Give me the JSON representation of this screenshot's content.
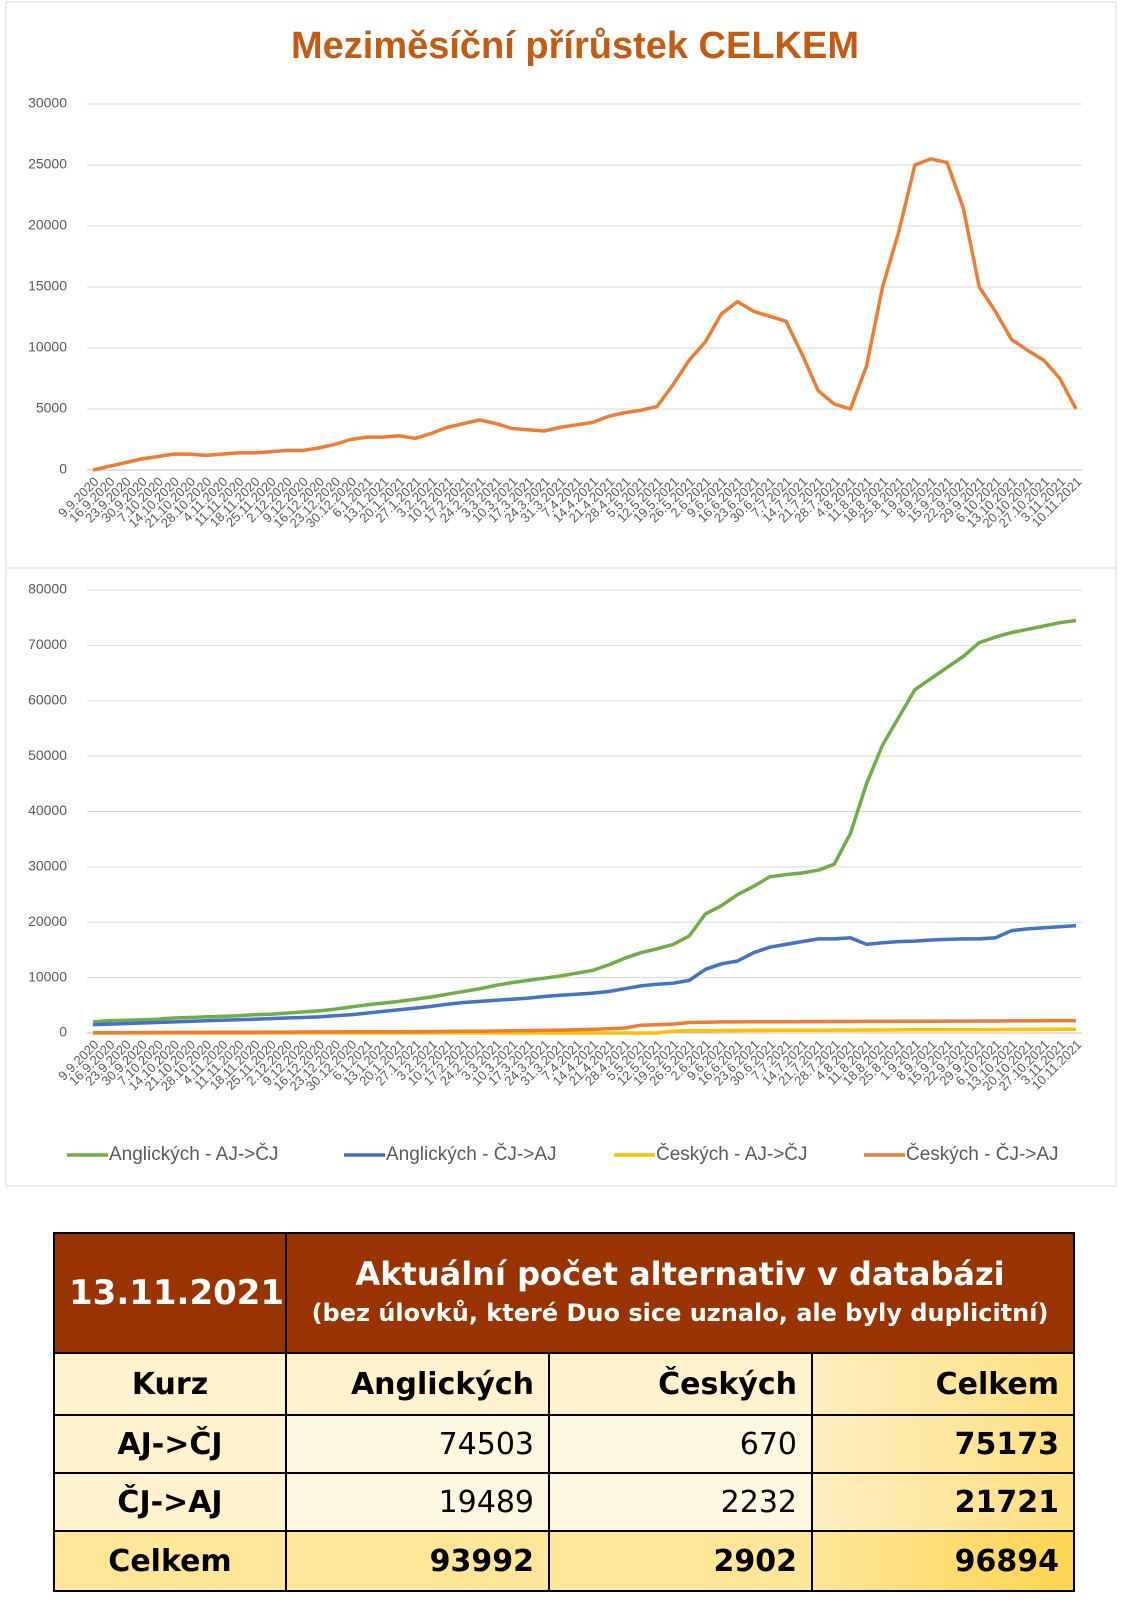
{
  "chart_data": [
    {
      "type": "line",
      "title": "Meziměsíční přírůstek CELKEM",
      "categories": [
        "9.9.2020",
        "16.9.2020",
        "23.9.2020",
        "30.9.2020",
        "7.10.2020",
        "14.10.2020",
        "21.10.2020",
        "28.10.2020",
        "4.11.2020",
        "11.11.2020",
        "18.11.2020",
        "25.11.2020",
        "2.12.2020",
        "9.12.2020",
        "16.12.2020",
        "23.12.2020",
        "30.12.2020",
        "6.1.2021",
        "13.1.2021",
        "20.1.2021",
        "27.1.2021",
        "3.2.2021",
        "10.2.2021",
        "17.2.2021",
        "24.2.2021",
        "3.3.2021",
        "10.3.2021",
        "17.3.2021",
        "24.3.2021",
        "31.3.2021",
        "7.4.2021",
        "14.4.2021",
        "21.4.2021",
        "28.4.2021",
        "5.5.2021",
        "12.5.2021",
        "19.5.2021",
        "26.5.2021",
        "2.6.2021",
        "9.6.2021",
        "16.6.2021",
        "23.6.2021",
        "30.6.2021",
        "7.7.2021",
        "14.7.2021",
        "21.7.2021",
        "28.7.2021",
        "4.8.2021",
        "11.8.2021",
        "18.8.2021",
        "25.8.2021",
        "1.9.2021",
        "8.9.2021",
        "15.9.2021",
        "22.9.2021",
        "29.9.2021",
        "6.10.2021",
        "13.10.2021",
        "20.10.2021",
        "27.10.2021",
        "3.11.2021",
        "10.11.2021"
      ],
      "values": [
        0,
        300,
        600,
        900,
        1100,
        1300,
        1300,
        1200,
        1300,
        1400,
        1400,
        1500,
        1600,
        1600,
        1800,
        2100,
        2500,
        2700,
        2700,
        2800,
        2600,
        3000,
        3500,
        3800,
        4100,
        3800,
        3400,
        3300,
        3200,
        3500,
        3700,
        3900,
        4400,
        4700,
        4900,
        5200,
        7000,
        9000,
        10500,
        12800,
        13800,
        13000,
        12600,
        12200,
        9500,
        6500,
        5400,
        5000,
        8500,
        15000,
        19500,
        25000,
        25500,
        25200,
        21500,
        15000,
        13000,
        10700,
        9800,
        9000,
        7500,
        5000
      ],
      "color": "#ED7D31",
      "ylim": [
        0,
        30000
      ],
      "yticks": [
        0,
        5000,
        10000,
        15000,
        20000,
        25000,
        30000
      ],
      "grid": true
    },
    {
      "type": "line",
      "categories": [
        "9.9.2020",
        "16.9.2020",
        "23.9.2020",
        "30.9.2020",
        "7.10.2020",
        "14.10.2020",
        "21.10.2020",
        "28.10.2020",
        "4.11.2020",
        "11.11.2020",
        "18.11.2020",
        "25.11.2020",
        "2.12.2020",
        "9.12.2020",
        "16.12.2020",
        "23.12.2020",
        "30.12.2020",
        "6.1.2021",
        "13.1.2021",
        "20.1.2021",
        "27.1.2021",
        "3.2.2021",
        "10.2.2021",
        "17.2.2021",
        "24.2.2021",
        "3.3.2021",
        "10.3.2021",
        "17.3.2021",
        "24.3.2021",
        "31.3.2021",
        "7.4.2021",
        "14.4.2021",
        "21.4.2021",
        "28.4.2021",
        "5.5.2021",
        "12.5.2021",
        "19.5.2021",
        "26.5.2021",
        "2.6.2021",
        "9.6.2021",
        "16.6.2021",
        "23.6.2021",
        "30.6.2021",
        "7.7.2021",
        "14.7.2021",
        "21.7.2021",
        "28.7.2021",
        "4.8.2021",
        "11.8.2021",
        "18.8.2021",
        "25.8.2021",
        "1.9.2021",
        "8.9.2021",
        "15.9.2021",
        "22.9.2021",
        "29.9.2021",
        "6.10.2021",
        "13.10.2021",
        "20.10.2021",
        "27.10.2021",
        "3.11.2021",
        "10.11.2021"
      ],
      "series": [
        {
          "name": "Anglických - AJ->ČJ",
          "color": "#70AD47",
          "values": [
            2000,
            2200,
            2300,
            2400,
            2500,
            2700,
            2800,
            2900,
            3000,
            3100,
            3300,
            3400,
            3600,
            3800,
            4000,
            4300,
            4700,
            5100,
            5400,
            5700,
            6100,
            6500,
            7000,
            7500,
            8000,
            8600,
            9100,
            9500,
            9900,
            10300,
            10800,
            11300,
            12300,
            13500,
            14500,
            15200,
            16000,
            17500,
            21500,
            23000,
            25000,
            26500,
            28200,
            28600,
            28900,
            29400,
            30500,
            36000,
            45000,
            52000,
            57000,
            62000,
            64000,
            66000,
            68000,
            70500,
            71500,
            72300,
            72900,
            73500,
            74100,
            74500
          ]
        },
        {
          "name": "Anglických - ČJ->AJ",
          "color": "#4472C4",
          "values": [
            1500,
            1600,
            1700,
            1800,
            1900,
            2000,
            2100,
            2200,
            2300,
            2400,
            2500,
            2600,
            2700,
            2800,
            2900,
            3100,
            3300,
            3600,
            3900,
            4200,
            4500,
            4800,
            5200,
            5500,
            5700,
            5900,
            6100,
            6300,
            6600,
            6800,
            7000,
            7200,
            7500,
            8000,
            8500,
            8800,
            9000,
            9500,
            11500,
            12500,
            13000,
            14500,
            15500,
            16000,
            16500,
            17000,
            17000,
            17200,
            16000,
            16300,
            16500,
            16600,
            16800,
            16900,
            17000,
            17000,
            17200,
            18500,
            18800,
            19000,
            19200,
            19400
          ]
        },
        {
          "name": "Českých - AJ->ČJ",
          "color": "#FFC000",
          "values": [
            0,
            0,
            0,
            0,
            0,
            0,
            0,
            0,
            0,
            0,
            0,
            0,
            0,
            0,
            0,
            0,
            0,
            0,
            0,
            0,
            0,
            0,
            0,
            0,
            0,
            0,
            0,
            0,
            0,
            0,
            0,
            0,
            0,
            0,
            0,
            0,
            350,
            400,
            420,
            440,
            460,
            470,
            480,
            490,
            500,
            510,
            520,
            530,
            540,
            550,
            560,
            570,
            580,
            590,
            600,
            610,
            620,
            630,
            640,
            650,
            660,
            670
          ]
        },
        {
          "name": "Českých - ČJ->AJ",
          "color": "#ED7D31",
          "values": [
            50,
            60,
            70,
            80,
            90,
            100,
            110,
            120,
            130,
            140,
            150,
            160,
            170,
            180,
            190,
            200,
            210,
            220,
            230,
            240,
            250,
            260,
            280,
            300,
            330,
            360,
            400,
            440,
            480,
            520,
            580,
            650,
            750,
            900,
            1400,
            1500,
            1600,
            1900,
            1950,
            2000,
            2000,
            2020,
            2030,
            2040,
            2050,
            2060,
            2070,
            2080,
            2090,
            2100,
            2110,
            2120,
            2130,
            2140,
            2150,
            2160,
            2170,
            2180,
            2190,
            2200,
            2215,
            2230
          ]
        }
      ],
      "ylim": [
        0,
        80000
      ],
      "yticks": [
        0,
        10000,
        20000,
        30000,
        40000,
        50000,
        60000,
        70000,
        80000
      ],
      "grid": true,
      "legend": "bottom"
    }
  ],
  "table": {
    "date": "13.11.2021",
    "title": "Aktuální počet alternativ v databázi",
    "subtitle": "(bez úlovků, které Duo sice uznalo, ale byly duplicitní)",
    "header": [
      "Kurz",
      "Anglických",
      "Českých",
      "Celkem"
    ],
    "rows": [
      [
        "AJ->ČJ",
        74503,
        670,
        75173
      ],
      [
        "ČJ->AJ",
        19489,
        2232,
        21721
      ],
      [
        "Celkem",
        93992,
        2902,
        96894
      ]
    ]
  }
}
